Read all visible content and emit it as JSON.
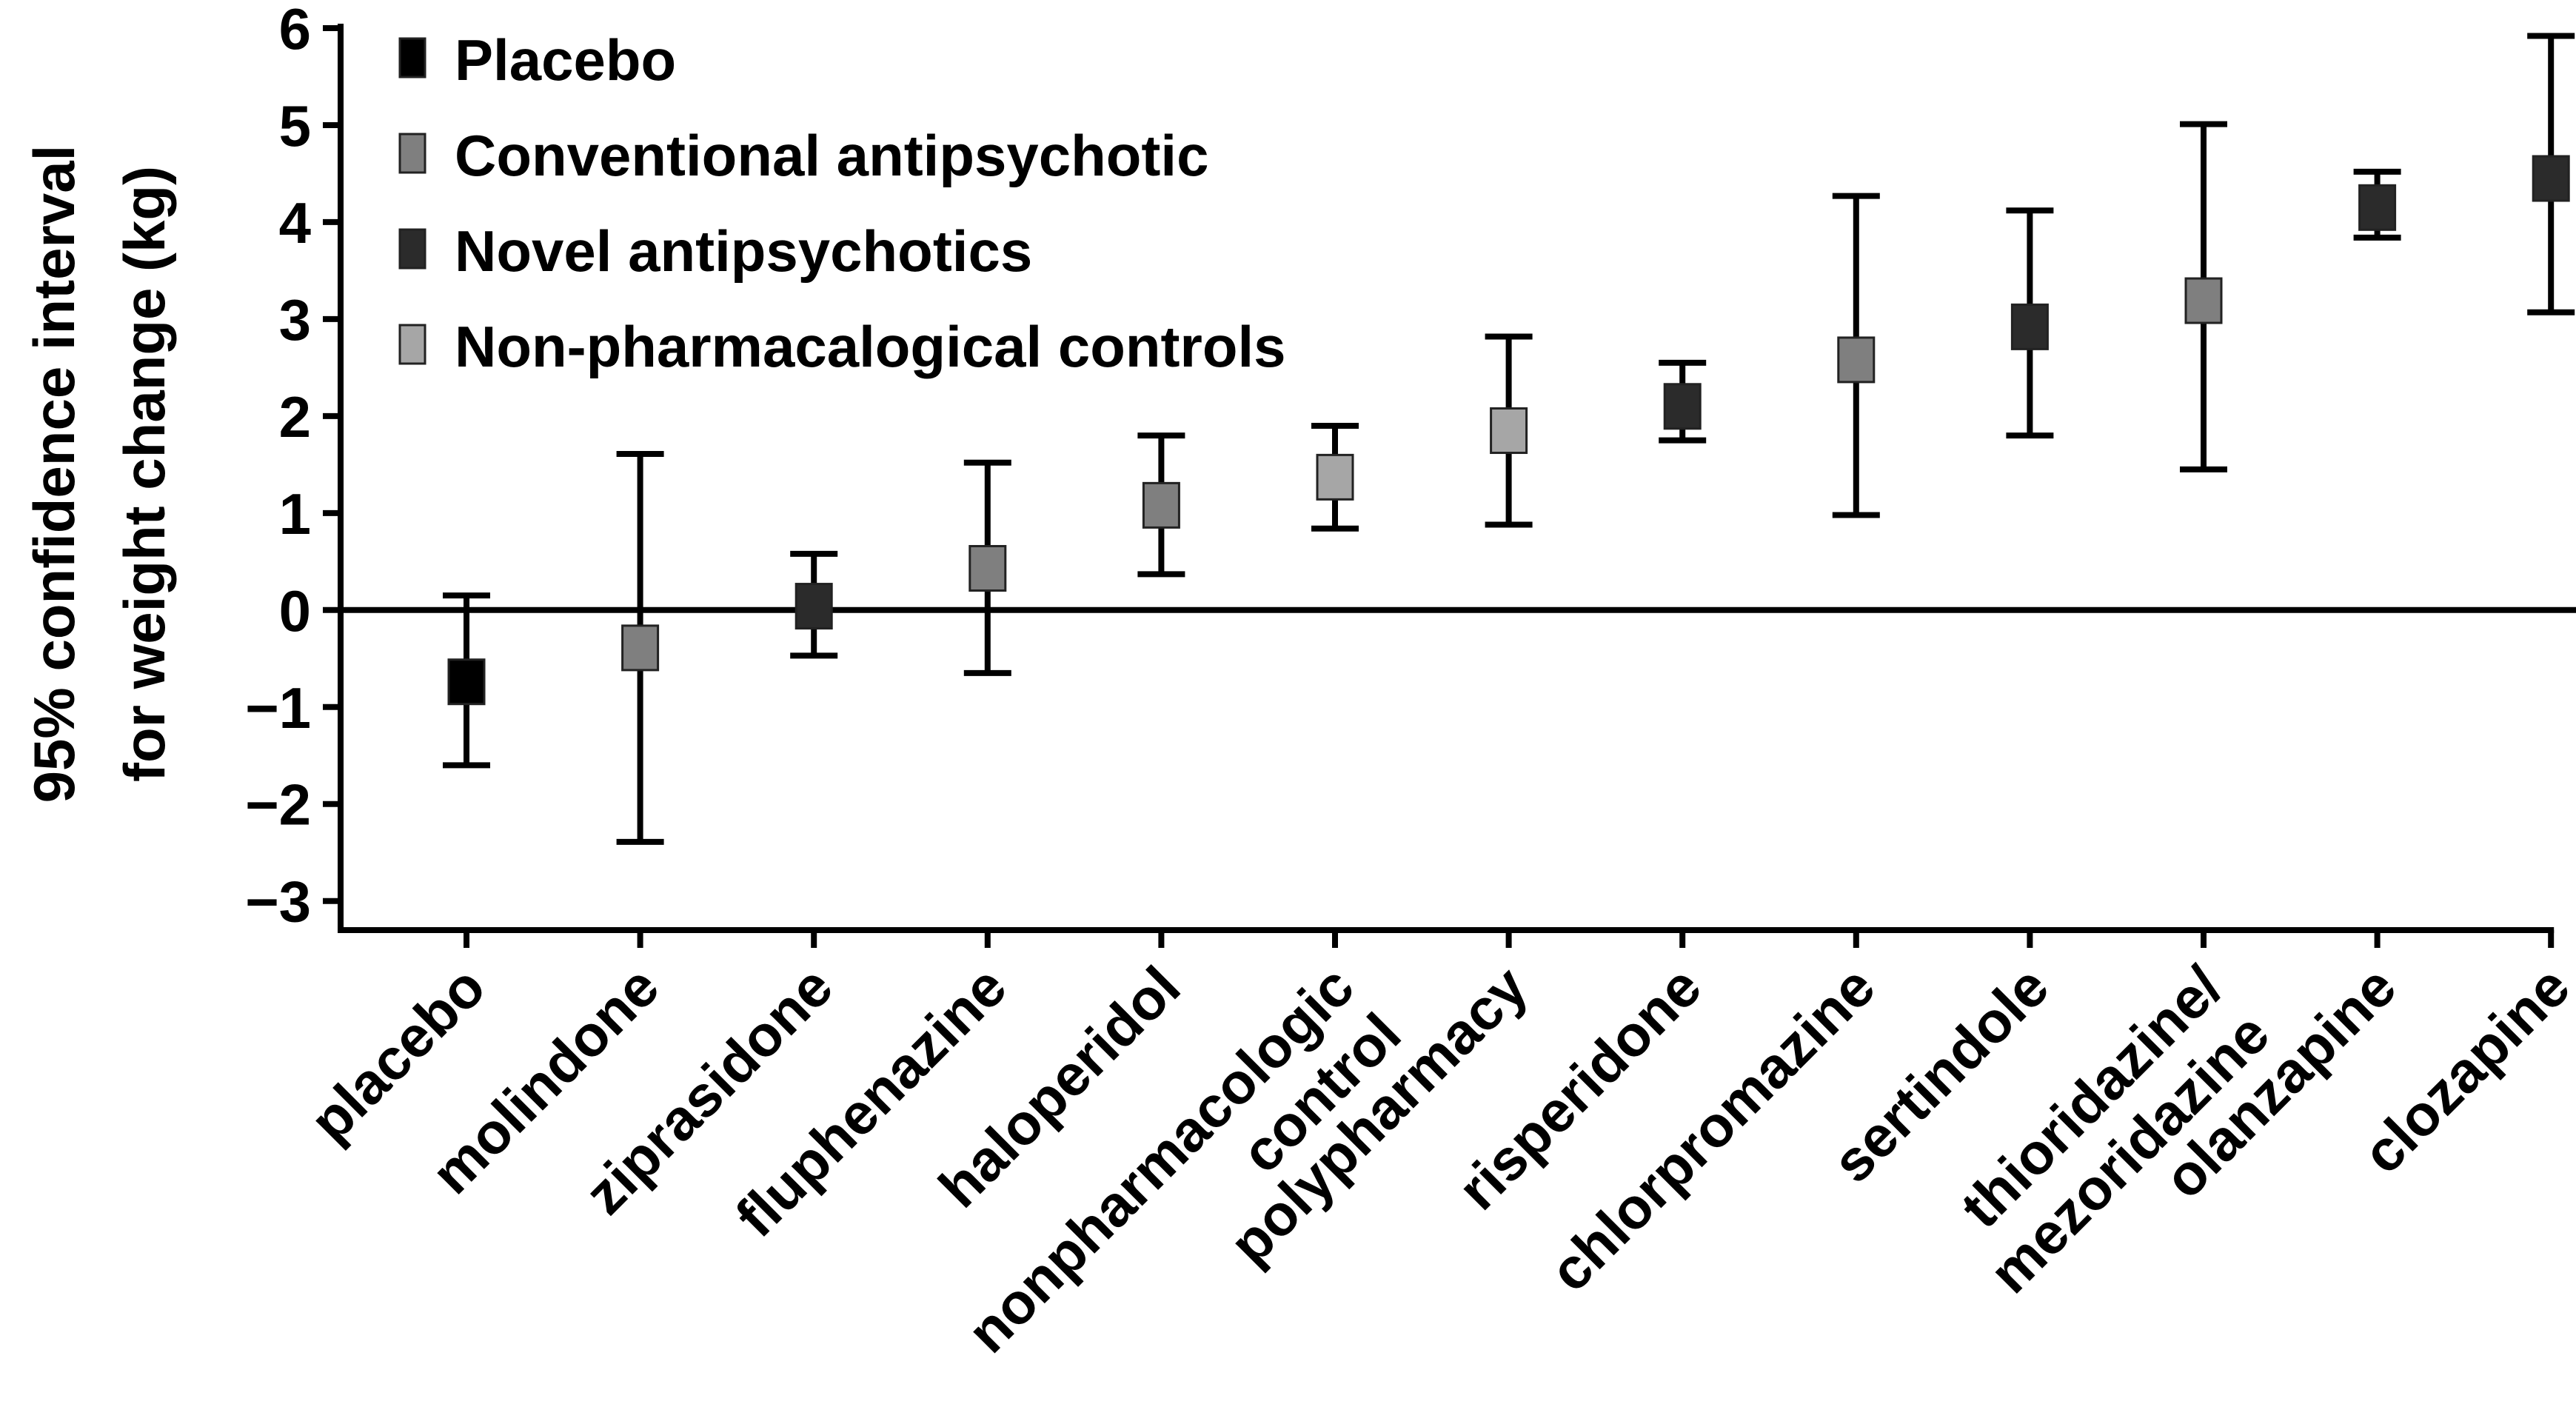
{
  "chart_data": {
    "type": "errorbar",
    "ylabel": [
      "95% confidence interval",
      "for weight change (kg)"
    ],
    "categories": [
      [
        "placebo"
      ],
      [
        "molindone"
      ],
      [
        "ziprasidone"
      ],
      [
        "fluphenazine"
      ],
      [
        "haloperidol"
      ],
      [
        "nonpharmacologic",
        "control"
      ],
      [
        "polypharmacy"
      ],
      [
        "risperidone"
      ],
      [
        "chlorpromazine"
      ],
      [
        "sertindole"
      ],
      [
        "thioridazine/",
        "mezoridazine"
      ],
      [
        "olanzapine"
      ],
      [
        "clozapine"
      ]
    ],
    "series": [
      {
        "name": "Placebo",
        "color": "#000000",
        "values": [
          -0.74,
          null,
          null,
          null,
          null,
          null,
          null,
          null,
          null,
          null,
          null,
          null,
          null
        ],
        "lower": [
          -1.6,
          null,
          null,
          null,
          null,
          null,
          null,
          null,
          null,
          null,
          null,
          null,
          null
        ],
        "upper": [
          0.15,
          null,
          null,
          null,
          null,
          null,
          null,
          null,
          null,
          null,
          null,
          null,
          null
        ]
      },
      {
        "name": "Conventional antipsychotic",
        "color": "#7f7f7f",
        "values": [
          null,
          -0.39,
          null,
          0.43,
          1.08,
          null,
          null,
          null,
          2.58,
          null,
          3.19,
          null,
          null
        ],
        "lower": [
          null,
          -2.39,
          null,
          -0.65,
          0.37,
          null,
          null,
          null,
          0.98,
          null,
          1.45,
          null,
          null
        ],
        "upper": [
          null,
          1.61,
          null,
          1.52,
          1.8,
          null,
          null,
          null,
          4.27,
          null,
          5.01,
          null,
          null
        ]
      },
      {
        "name": "Novel antipsychotics",
        "color": "#2b2b2b",
        "values": [
          null,
          null,
          0.04,
          null,
          null,
          null,
          null,
          2.1,
          null,
          2.92,
          null,
          4.15,
          4.45
        ],
        "lower": [
          null,
          null,
          -0.47,
          null,
          null,
          null,
          null,
          1.75,
          null,
          1.8,
          null,
          3.84,
          3.07
        ],
        "upper": [
          null,
          null,
          0.58,
          null,
          null,
          null,
          null,
          2.55,
          null,
          4.12,
          null,
          4.52,
          5.92
        ]
      },
      {
        "name": "Non-pharmacalogical controls",
        "color": "#a6a6a6",
        "values": [
          null,
          null,
          null,
          null,
          null,
          1.37,
          1.85,
          null,
          null,
          null,
          null,
          null,
          null
        ],
        "lower": [
          null,
          null,
          null,
          null,
          null,
          0.84,
          0.88,
          null,
          null,
          null,
          null,
          null,
          null
        ],
        "upper": [
          null,
          null,
          null,
          null,
          null,
          1.9,
          2.82,
          null,
          null,
          null,
          null,
          null,
          null
        ]
      }
    ],
    "ylim": [
      -3.3,
      6
    ],
    "yticks": [
      {
        "value": -3,
        "label": "−3"
      },
      {
        "value": -2,
        "label": "−2"
      },
      {
        "value": -1,
        "label": "−1"
      },
      0,
      1,
      2,
      3,
      4,
      5,
      6
    ],
    "legend": "upper left"
  }
}
